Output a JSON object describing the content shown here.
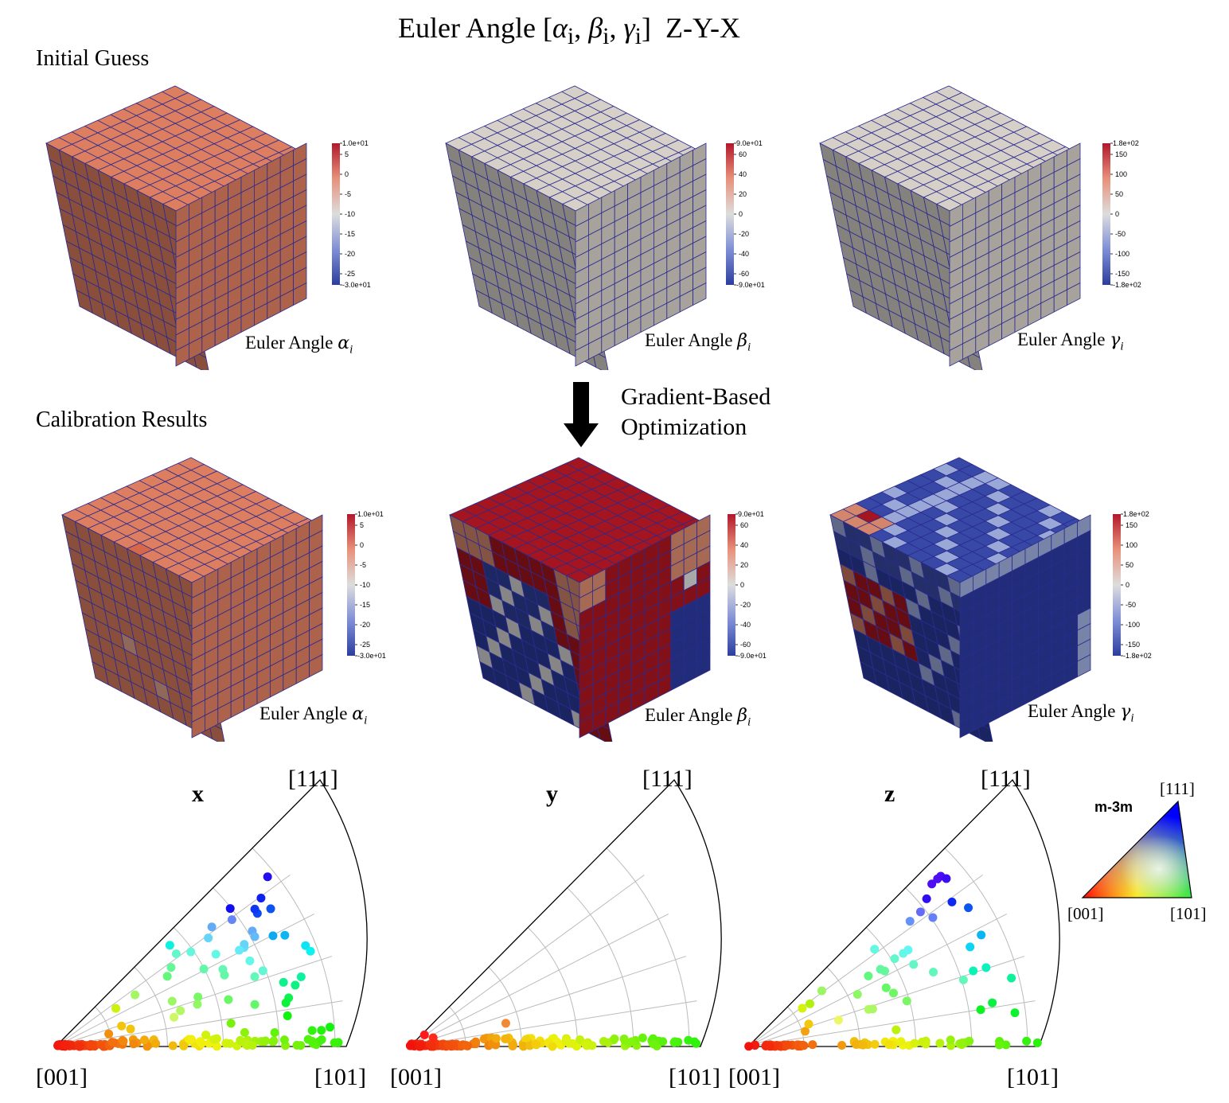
{
  "title": {
    "prefix": "Euler Angle ",
    "alpha": "α",
    "beta": "β",
    "gamma": "γ",
    "sub": "i",
    "suffix": "Z-Y-X"
  },
  "sections": {
    "initial": "Initial Guess",
    "calibration": "Calibration Results"
  },
  "arrow": {
    "line1": "Gradient-Based",
    "line2": "Optimization"
  },
  "captions": {
    "text": "Euler Angle",
    "alpha": "α",
    "beta": "β",
    "gamma": "γ",
    "sub": "i"
  },
  "colorbars": {
    "alpha": {
      "max": "1.0e+01",
      "min": "-3.0e+01",
      "ticks": [
        "5",
        "0",
        "-5",
        "-10",
        "-15",
        "-20",
        "-25"
      ]
    },
    "beta": {
      "max": "9.0e+01",
      "min": "-9.0e+01",
      "ticks": [
        "60",
        "40",
        "20",
        "0",
        "-20",
        "-40",
        "-60"
      ]
    },
    "gamma": {
      "max": "1.8e+02",
      "min": "-1.8e+02",
      "ticks": [
        "150",
        "100",
        "50",
        "0",
        "-50",
        "-100",
        "-150"
      ]
    }
  },
  "colors": {
    "red": "#b2182b",
    "white": "#dddddd",
    "blue": "#2c3e9e",
    "orange": "#d9785a",
    "grid": "#2b2b8f"
  },
  "pole_figures": {
    "corner_111": "[111]",
    "corner_001": "[001]",
    "corner_101": "[101]",
    "titles": [
      "x",
      "y",
      "z"
    ],
    "key_title": "m-3m"
  }
}
